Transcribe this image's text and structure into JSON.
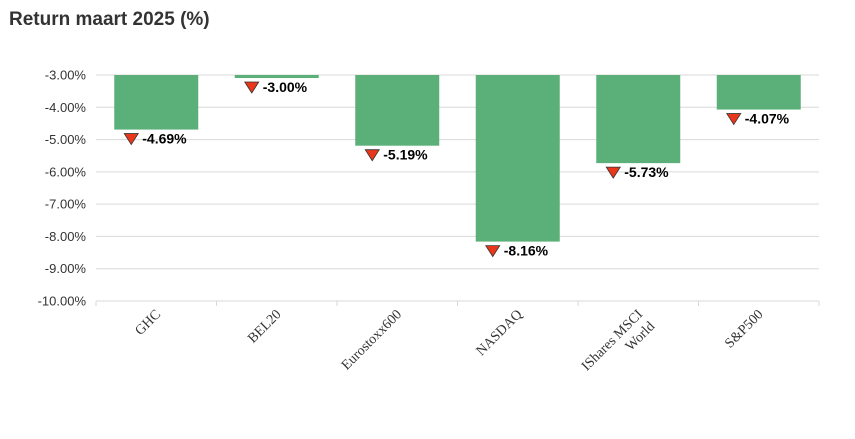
{
  "chart_data": {
    "type": "bar",
    "title": "Return maart 2025 (%)",
    "categories": [
      "GHC",
      "BEL20",
      "Eurostoxx600",
      "NASDAQ",
      "IShares MSCI World",
      "S&P500"
    ],
    "category_lines": [
      [
        "GHC"
      ],
      [
        "BEL20"
      ],
      [
        "Eurostoxx600"
      ],
      [
        "NASDAQ"
      ],
      [
        "IShares MSCI",
        "World"
      ],
      [
        "S&P500"
      ]
    ],
    "values": [
      -4.69,
      -3.0,
      -5.19,
      -8.16,
      -5.73,
      -4.07
    ],
    "value_labels": [
      "-4.69%",
      "-3.00%",
      "-5.19%",
      "-8.16%",
      "-5.73%",
      "-4.07%"
    ],
    "yticks": [
      -3,
      -4,
      -5,
      -6,
      -7,
      -8,
      -9,
      -10
    ],
    "ytick_labels": [
      "-3.00%",
      "-4.00%",
      "-5.00%",
      "-6.00%",
      "-7.00%",
      "-8.00%",
      "-9.00%",
      "-10.00%"
    ],
    "ylim": [
      -10,
      -3
    ],
    "grid": true,
    "bar_color": "#5bb07a",
    "marker_color": "#e8371b"
  }
}
